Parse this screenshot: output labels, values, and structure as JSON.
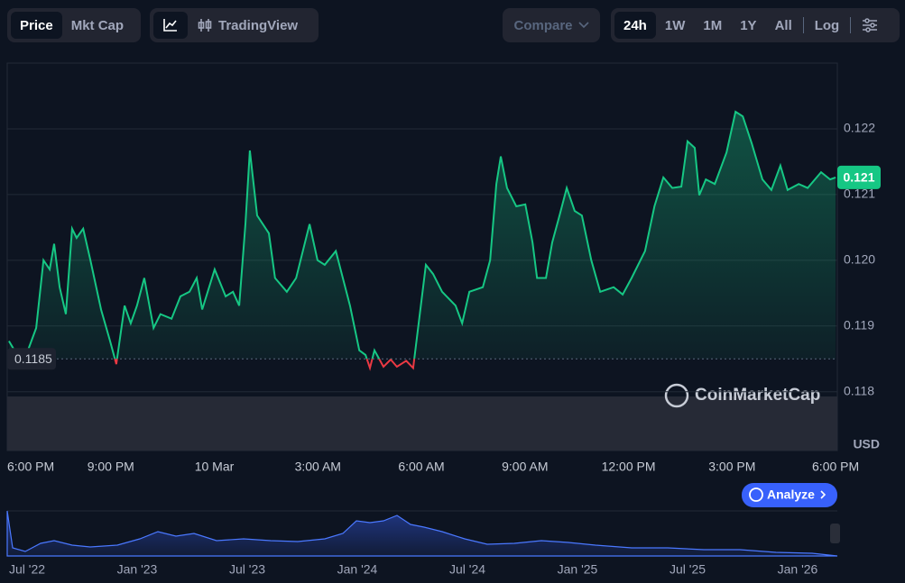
{
  "toolbar": {
    "tabs": [
      "Price",
      "Mkt Cap"
    ],
    "chart_view": "TradingView",
    "compare": "Compare",
    "ranges": [
      "24h",
      "1W",
      "1M",
      "1Y",
      "All"
    ],
    "log": "Log"
  },
  "chart_data": {
    "type": "line",
    "color": "#16c784",
    "below_color": "#ea3943",
    "x": [
      0.05,
      0.21,
      0.58,
      0.84,
      1.05,
      1.23,
      1.36,
      1.52,
      1.7,
      1.88,
      2.01,
      2.2,
      2.41,
      2.72,
      2.98,
      3.16,
      3.4,
      3.58,
      3.76,
      3.97,
      4.24,
      4.44,
      4.76,
      5.02,
      5.28,
      5.49,
      5.65,
      6.01,
      6.33,
      6.54,
      6.72,
      6.9,
      7.03,
      7.24,
      7.58,
      7.76,
      8.1,
      8.37,
      8.76,
      8.99,
      9.2,
      9.52,
      9.93,
      10.2,
      10.38,
      10.51,
      10.64,
      10.9,
      11.11,
      11.29,
      11.56,
      11.76,
      12.13,
      12.34,
      12.6,
      12.99,
      13.18,
      13.39,
      13.78,
      13.99,
      14.17,
      14.3,
      14.48,
      14.75,
      15.01,
      15.22,
      15.35,
      15.61,
      15.79,
      16.0,
      16.21,
      16.44,
      16.65,
      16.92,
      17.18,
      17.57,
      17.83,
      18.09,
      18.48,
      18.75,
      19.01,
      19.27,
      19.53,
      19.71,
      19.92,
      20.05,
      20.24,
      20.5,
      20.84,
      21.1,
      21.31,
      21.57,
      21.88,
      22.14,
      22.4,
      22.61,
      22.93,
      23.19,
      23.58,
      23.84,
      24.0
    ],
    "values": [
      0.11877,
      0.11863,
      0.1186,
      0.11897,
      0.12,
      0.11986,
      0.12025,
      0.11959,
      0.11918,
      0.12048,
      0.12034,
      0.12048,
      0.12,
      0.11925,
      0.11877,
      0.11842,
      0.11931,
      0.11904,
      0.11931,
      0.11973,
      0.11897,
      0.11918,
      0.11911,
      0.11945,
      0.11952,
      0.11973,
      0.11925,
      0.11986,
      0.11945,
      0.11952,
      0.11931,
      0.12055,
      0.12167,
      0.12068,
      0.12041,
      0.11973,
      0.11952,
      0.11973,
      0.12055,
      0.12,
      0.11993,
      0.12014,
      0.11931,
      0.11863,
      0.11856,
      0.11836,
      0.11863,
      0.11838,
      0.11849,
      0.11838,
      0.11847,
      0.11836,
      0.11993,
      0.11979,
      0.11952,
      0.11931,
      0.11904,
      0.11952,
      0.11959,
      0.12,
      0.12116,
      0.12158,
      0.1211,
      0.12082,
      0.12085,
      0.12027,
      0.11973,
      0.11973,
      0.12027,
      0.12068,
      0.1211,
      0.12075,
      0.12068,
      0.12,
      0.11952,
      0.11959,
      0.11948,
      0.11973,
      0.12014,
      0.12082,
      0.12126,
      0.1211,
      0.12112,
      0.12181,
      0.12171,
      0.12099,
      0.12123,
      0.12116,
      0.12164,
      0.12226,
      0.12219,
      0.12178,
      0.12123,
      0.12107,
      0.12144,
      0.12107,
      0.12116,
      0.1211,
      0.12134,
      0.12123,
      0.12126
    ],
    "xlim": [
      0,
      24.05
    ],
    "xticks": [
      {
        "value": 0,
        "label": "6:00 PM"
      },
      {
        "value": 3,
        "label": "9:00 PM"
      },
      {
        "value": 6,
        "label": "10 Mar"
      },
      {
        "value": 9,
        "label": "3:00 AM"
      },
      {
        "value": 12,
        "label": "6:00 AM"
      },
      {
        "value": 15,
        "label": "9:00 AM"
      },
      {
        "value": 18,
        "label": "12:00 PM"
      },
      {
        "value": 21,
        "label": "3:00 PM"
      },
      {
        "value": 24,
        "label": "6:00 PM"
      }
    ],
    "ylim": [
      0.1179,
      0.123
    ],
    "yticks": [
      0.118,
      0.119,
      {
        "value": 0.12,
        "label": "0.120"
      },
      0.121,
      0.122
    ],
    "grid": true,
    "reference": 0.1185,
    "last_label": "0.121",
    "currency": "USD",
    "watermark": "CoinMarketCap"
  },
  "analyze_button": "Analyze",
  "navigator": {
    "labels": [
      "Jul '22",
      "Jan '23",
      "Jul '23",
      "Jan '24",
      "Jul '24",
      "Jan '25",
      "Jul '25",
      "Jan '26"
    ]
  }
}
